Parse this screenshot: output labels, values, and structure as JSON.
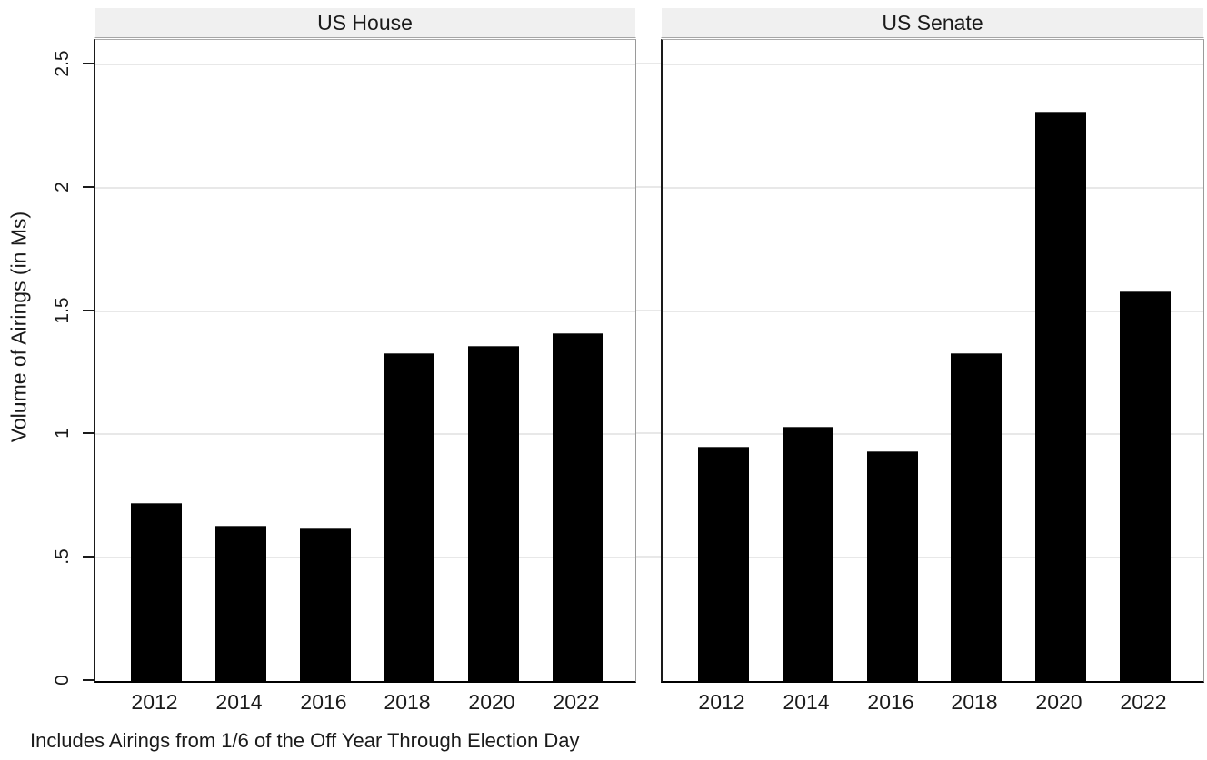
{
  "chart_data": {
    "type": "bar",
    "categories": [
      "2012",
      "2014",
      "2016",
      "2018",
      "2020",
      "2022"
    ],
    "panels": [
      {
        "title": "US House",
        "values": [
          0.72,
          0.63,
          0.62,
          1.33,
          1.36,
          1.41
        ]
      },
      {
        "title": "US Senate",
        "values": [
          0.95,
          1.03,
          0.93,
          1.33,
          2.31,
          1.58
        ]
      }
    ],
    "ylabel": "Volume of Airings (in Ms)",
    "y_ticks": [
      0,
      0.5,
      1,
      1.5,
      2,
      2.5
    ],
    "y_tick_labels": [
      "0",
      ".5",
      "1",
      "1.5",
      "2",
      "2.5"
    ],
    "ylim": [
      0,
      2.6
    ],
    "grid": true,
    "legend_position": "none",
    "note": "Includes Airings from 1/6 of the Off Year Through Election Day",
    "bar_color": "#000000",
    "grid_color": "#e8e8e8",
    "header_bg": "#f0f0f0"
  }
}
